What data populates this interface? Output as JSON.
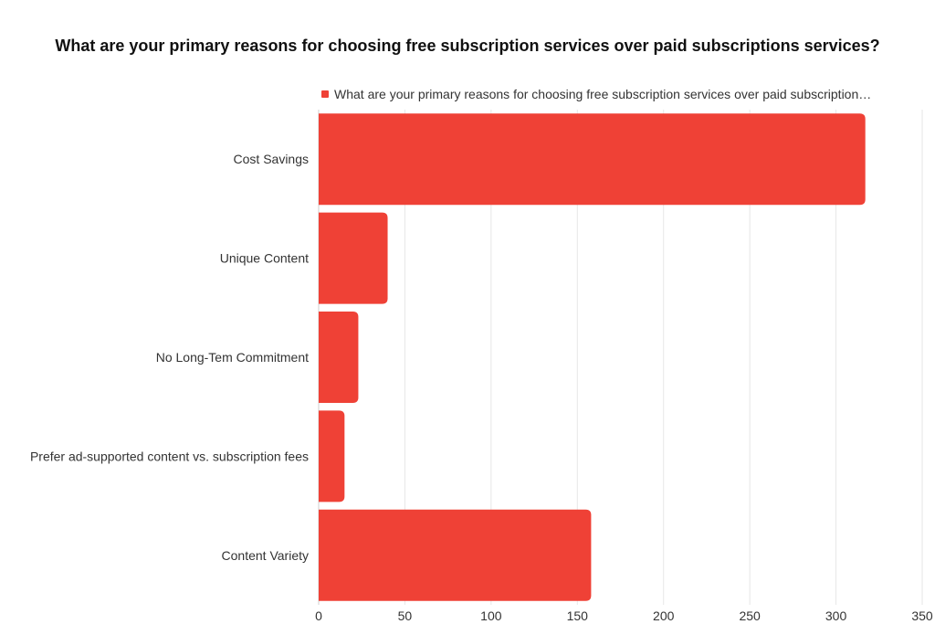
{
  "chart_data": {
    "type": "bar",
    "orientation": "horizontal",
    "title": "What are your primary reasons for choosing free subscription services over paid subscriptions services?",
    "legend": {
      "position": "top-right",
      "label": "What are your primary reasons for choosing free subscription services over paid subscription…"
    },
    "categories": [
      "Cost Savings",
      "Unique Content",
      "No Long-Tem Commitment",
      "Prefer ad-supported content vs. subscription fees",
      "Content Variety"
    ],
    "series": [
      {
        "name": "What are your primary reasons for choosing free subscription services over paid subscriptions services?",
        "values": [
          317,
          40,
          23,
          15,
          158
        ]
      }
    ],
    "xlim": [
      0,
      350
    ],
    "xticks": [
      0,
      50,
      100,
      150,
      200,
      250,
      300,
      350
    ],
    "xlabel": "",
    "ylabel": "",
    "grid": true,
    "bar_color": "#EF4136",
    "grid_color": "#E6E6E6"
  }
}
